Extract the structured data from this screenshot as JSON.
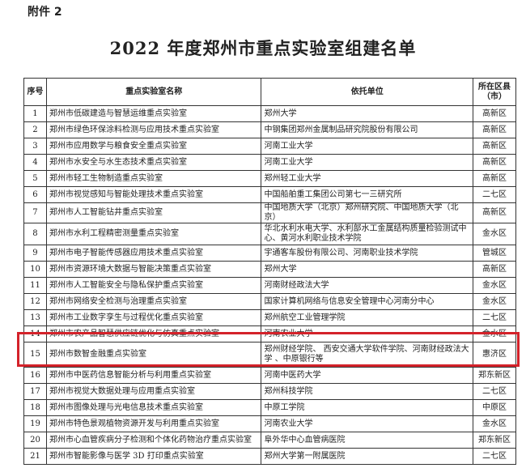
{
  "attachment_label": "附件 2",
  "title": "2022 年度郑州市重点实验室组建名单",
  "table": {
    "headers": [
      "序号",
      "重点实验室名称",
      "依托单位",
      "所在区县（市）"
    ],
    "rows": [
      {
        "no": "1",
        "name": "郑州市低碳建造与智慧运维重点实验室",
        "unit": "郑州大学",
        "district": "高新区"
      },
      {
        "no": "2",
        "name": "郑州市绿色环保涂料检测与应用技术重点实验室",
        "unit": "中钢集团郑州金属制品研究院股份有限公司",
        "district": "高新区"
      },
      {
        "no": "3",
        "name": "郑州市应用数学与粮食安全重点实验室",
        "unit": "河南工业大学",
        "district": "高新区"
      },
      {
        "no": "4",
        "name": "郑州市水安全与水生态技术重点实验室",
        "unit": "河南工业大学",
        "district": "高新区"
      },
      {
        "no": "5",
        "name": "郑州市轻工生物制造重点实验室",
        "unit": "郑州轻工业大学",
        "district": "高新区"
      },
      {
        "no": "6",
        "name": "郑州市视觉感知与智能处理技术重点实验室",
        "unit": "中国船舶重工集团公司第七一三研究所",
        "district": "二七区"
      },
      {
        "no": "7",
        "name": "郑州市人工智能钻井重点实验室",
        "unit": "中国地质大学（北京）郑州研究院、中国地质大学（北京）",
        "district": "高新区"
      },
      {
        "no": "8",
        "name": "郑州市水利工程精密测量重点实验室",
        "unit": "华北水利水电大学、水利部水工金属结构质量检验测试中心、黄河水利职业技术学院",
        "district": "金水区"
      },
      {
        "no": "9",
        "name": "郑州市电子智能传感器应用技术重点实验室",
        "unit": "宇通客车股份有限公司、河南职业技术学院",
        "district": "管城区"
      },
      {
        "no": "10",
        "name": "郑州市资源环境大数据与智能决策重点实验室",
        "unit": "郑州大学",
        "district": "高新区"
      },
      {
        "no": "11",
        "name": "郑州市人工智能安全与隐私保护重点实验室",
        "unit": "河南财经政法大学",
        "district": "金水区"
      },
      {
        "no": "12",
        "name": "郑州市网络安全检测与治理重点实验室",
        "unit": "国家计算机网络与信息安全管理中心河南分中心",
        "district": "金水区"
      },
      {
        "no": "13",
        "name": "郑州市工业数字孪生与过程优化重点实验室",
        "unit": "郑州航空工业管理学院",
        "district": "二七区"
      },
      {
        "no": "14",
        "name": "郑州市农产品智慧供应链优化与仿真重点实验室",
        "unit": "河南农业大学",
        "district": "金水区"
      },
      {
        "no": "15",
        "name": "郑州市数智金融重点实验室",
        "unit": "郑州财经学院、 西安交通大学软件学院、河南财经政法大学 、中原银行等",
        "district": "惠济区",
        "highlighted": true
      },
      {
        "no": "16",
        "name": "郑州市中医药信息智能分析与利用重点实验室",
        "unit": "河南中医药大学",
        "district": "郑东新区"
      },
      {
        "no": "17",
        "name": "郑州市视觉大数据处理与应用重点实验室",
        "unit": "郑州科技学院",
        "district": "二七区"
      },
      {
        "no": "18",
        "name": "郑州市图像处理与光电信息技术重点实验室",
        "unit": "中原工学院",
        "district": "中原区"
      },
      {
        "no": "19",
        "name": "郑州市特色景观植物资源开发与利用重点实验室",
        "unit": "河南农业大学",
        "district": "金水区"
      },
      {
        "no": "20",
        "name": "郑州市心血管疾病分子检测和个体化药物治疗重点实验室",
        "unit": "阜外华中心血管病医院",
        "district": "郑东新区"
      },
      {
        "no": "21",
        "name": "郑州市智能影像与医学 3D 打印重点实验室",
        "unit": "郑州大学第一附属医院",
        "district": "二七区"
      }
    ]
  },
  "highlight_color": "#d4222a"
}
